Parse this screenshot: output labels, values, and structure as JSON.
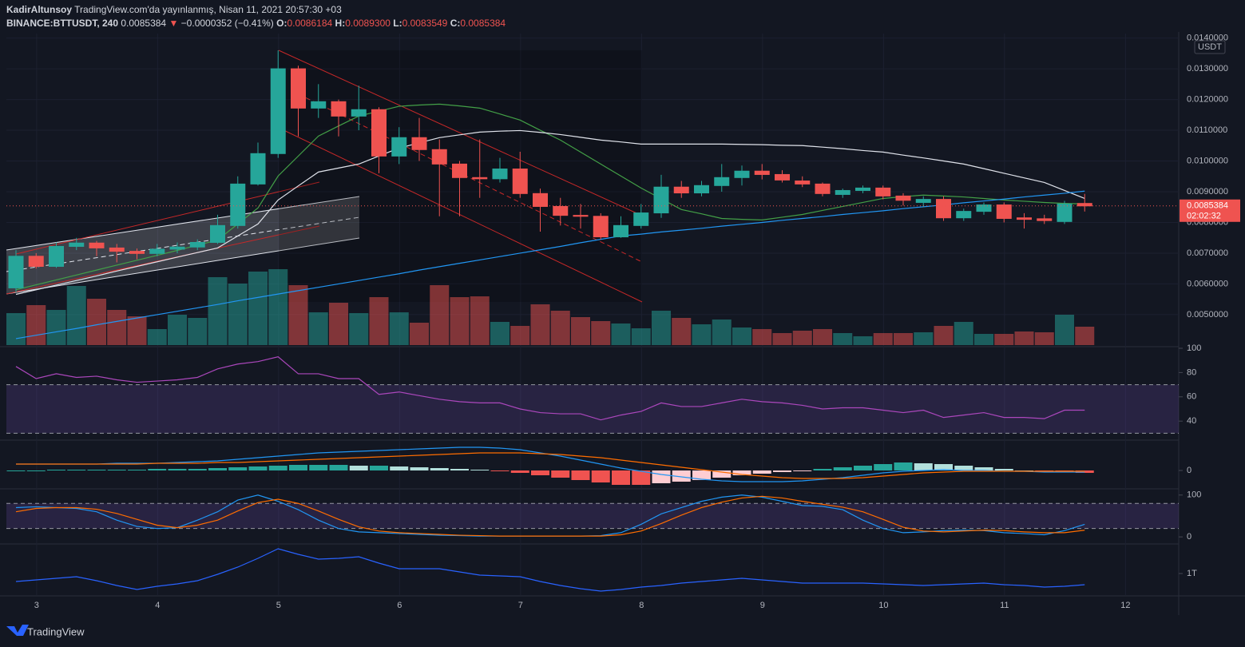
{
  "header": {
    "author": "KadirAltunsoy",
    "published": "TradingView.com'da yayınlanmış, Nisan 11, 2021 20:57:30 +03",
    "symbol": "BINANCE:BTTUSDT, 240",
    "last": "0.0085384",
    "arrow": "▼",
    "change": "−0.0000352 (−0.41%)",
    "o_label": "O:",
    "o": "0.0086184",
    "h_label": "H:",
    "h": "0.0089300",
    "l_label": "L:",
    "l": "0.0083549",
    "c_label": "C:",
    "c": "0.0085384"
  },
  "chart_data": [
    {
      "type": "candlestick",
      "up_color": "#26a69a",
      "down_color": "#ef5350",
      "currency": "USDT",
      "price_tag": {
        "label": "0.0085384",
        "countdown": "02:02:32"
      },
      "candles": {
        "open": [
          0.00587,
          0.0069,
          0.00657,
          0.00722,
          0.00733,
          0.00717,
          0.00706,
          0.00699,
          0.00713,
          0.0072,
          0.00735,
          0.0079,
          0.00925,
          0.01024,
          0.013,
          0.01172,
          0.01193,
          0.01146,
          0.01167,
          0.01016,
          0.01076,
          0.01037,
          0.0099,
          0.00946,
          0.00942,
          0.00974,
          0.00894,
          0.00852,
          0.00823,
          0.0082,
          0.00753,
          0.0079,
          0.00831,
          0.00915,
          0.00896,
          0.0092,
          0.00946,
          0.00967,
          0.00956,
          0.00935,
          0.00925,
          0.00891,
          0.00904,
          0.00912,
          0.00886,
          0.00865,
          0.00875,
          0.00815,
          0.00836,
          0.00857,
          0.00815,
          0.00812,
          0.00803,
          0.0086184
        ],
        "high": [
          0.0071,
          0.007,
          0.00735,
          0.0075,
          0.0074,
          0.0073,
          0.00715,
          0.0073,
          0.00735,
          0.00745,
          0.00825,
          0.0095,
          0.0106,
          0.0136,
          0.0131,
          0.0125,
          0.012,
          0.01245,
          0.01175,
          0.0111,
          0.0114,
          0.0107,
          0.01,
          0.0107,
          0.0101,
          0.0103,
          0.0091,
          0.0088,
          0.0086,
          0.0083,
          0.0082,
          0.0086,
          0.00955,
          0.00935,
          0.00935,
          0.0099,
          0.00985,
          0.0099,
          0.0097,
          0.0095,
          0.0093,
          0.0091,
          0.0092,
          0.0092,
          0.00895,
          0.00885,
          0.00885,
          0.00845,
          0.00865,
          0.00865,
          0.0083,
          0.00825,
          0.0087,
          0.00893
        ],
        "low": [
          0.00572,
          0.0065,
          0.00652,
          0.0071,
          0.0069,
          0.0067,
          0.0068,
          0.0069,
          0.007,
          0.0071,
          0.0073,
          0.0078,
          0.0092,
          0.0101,
          0.0108,
          0.0114,
          0.0108,
          0.011,
          0.0096,
          0.0099,
          0.01,
          0.0082,
          0.0082,
          0.0088,
          0.0093,
          0.0088,
          0.0077,
          0.0079,
          0.0078,
          0.00745,
          0.0075,
          0.0078,
          0.00815,
          0.0088,
          0.00885,
          0.009,
          0.0092,
          0.0094,
          0.0093,
          0.00915,
          0.00885,
          0.0088,
          0.00895,
          0.00875,
          0.00855,
          0.0085,
          0.00805,
          0.00805,
          0.00825,
          0.008,
          0.0078,
          0.00795,
          0.00795,
          0.0083549
        ],
        "close": [
          0.0069,
          0.00657,
          0.00722,
          0.00733,
          0.00717,
          0.00706,
          0.00699,
          0.00713,
          0.0072,
          0.00735,
          0.0079,
          0.00925,
          0.01024,
          0.013,
          0.01172,
          0.01193,
          0.01146,
          0.01167,
          0.01016,
          0.01076,
          0.01037,
          0.0099,
          0.00946,
          0.00942,
          0.00974,
          0.00894,
          0.00852,
          0.00823,
          0.0082,
          0.00753,
          0.0079,
          0.00831,
          0.00915,
          0.00896,
          0.0092,
          0.00946,
          0.00967,
          0.00956,
          0.00938,
          0.00925,
          0.00894,
          0.00904,
          0.00912,
          0.00886,
          0.00872,
          0.00875,
          0.00815,
          0.00836,
          0.00857,
          0.00813,
          0.0081,
          0.00806,
          0.0086,
          0.0085384
        ]
      },
      "volume": [
        40,
        50,
        44,
        74,
        58,
        44,
        36,
        20,
        38,
        34,
        85,
        77,
        92,
        95,
        75,
        41,
        53,
        40,
        60,
        41,
        28,
        75,
        60,
        61,
        29,
        24,
        51,
        43,
        35,
        30,
        27,
        21,
        43,
        34,
        26,
        32,
        22,
        20,
        15,
        18,
        20,
        15,
        11,
        15,
        15,
        16,
        24,
        29,
        14,
        14,
        17,
        16,
        38,
        23
      ],
      "series": [
        {
          "color": "#43a047",
          "values": [
            0.00581,
            0.00597,
            0.00613,
            0.00629,
            0.00645,
            0.00661,
            0.00677,
            0.00693,
            0.00709,
            0.00726,
            0.00743,
            0.00795,
            0.00847,
            0.00951,
            0.01016,
            0.01081,
            0.01114,
            0.01146,
            0.01162,
            0.01178,
            0.01182,
            0.01185,
            0.01179,
            0.01172,
            0.01153,
            0.01133,
            0.011,
            0.01068,
            0.01029,
            0.0099,
            0.00951,
            0.00912,
            0.00877,
            0.00842,
            0.00828,
            0.00813,
            0.0081,
            0.00808,
            0.00817,
            0.00826,
            0.00839,
            0.00852,
            0.00865,
            0.00878,
            0.00884,
            0.00889,
            0.00886,
            0.00883,
            0.00878,
            0.00873,
            0.00869,
            0.00865,
            0.00862,
            0.0086
          ]
        },
        {
          "color": "#e0e3eb",
          "values": [
            0.00566,
            0.00581,
            0.00596,
            0.00611,
            0.00626,
            0.00642,
            0.00657,
            0.00672,
            0.00687,
            0.00702,
            0.00717,
            0.00756,
            0.00795,
            0.00873,
            0.00919,
            0.00964,
            0.00977,
            0.0099,
            0.01016,
            0.01042,
            0.01059,
            0.01076,
            0.01085,
            0.01094,
            0.01097,
            0.01099,
            0.01093,
            0.01086,
            0.01077,
            0.01068,
            0.01062,
            0.01055,
            0.01055,
            0.01055,
            0.01055,
            0.01055,
            0.01054,
            0.01053,
            0.01051,
            0.0105,
            0.01045,
            0.0104,
            0.01034,
            0.01029,
            0.01019,
            0.0101,
            0.01,
            0.0099,
            0.00975,
            0.0096,
            0.00945,
            0.0093,
            0.00904,
            0.00878
          ]
        },
        {
          "color": "#2196f3",
          "values": [
            0.00422,
            0.00433,
            0.00444,
            0.00455,
            0.00467,
            0.00478,
            0.00489,
            0.005,
            0.00511,
            0.00522,
            0.00533,
            0.00545,
            0.00556,
            0.00567,
            0.00578,
            0.00589,
            0.006,
            0.00611,
            0.00622,
            0.00633,
            0.00645,
            0.00656,
            0.00667,
            0.00678,
            0.00689,
            0.007,
            0.00711,
            0.00722,
            0.00734,
            0.00745,
            0.00756,
            0.00762,
            0.00769,
            0.00775,
            0.00781,
            0.00788,
            0.00794,
            0.008,
            0.00807,
            0.00813,
            0.00819,
            0.00826,
            0.00832,
            0.00838,
            0.00845,
            0.00851,
            0.00857,
            0.00864,
            0.0087,
            0.00876,
            0.00883,
            0.00889,
            0.00895,
            0.00902
          ]
        }
      ],
      "ylim": [
        0.00401,
        0.014146
      ],
      "yticks": [
        {
          "value": 0.014,
          "label": "0.0140000"
        },
        {
          "value": 0.013,
          "label": "0.0130000"
        },
        {
          "value": 0.012,
          "label": "0.0120000"
        },
        {
          "value": 0.011,
          "label": "0.0110000"
        },
        {
          "value": 0.01,
          "label": "0.0100000"
        },
        {
          "value": 0.009,
          "label": "0.0090000"
        },
        {
          "value": 0.008,
          "label": "0.0080000"
        },
        {
          "value": 0.007,
          "label": "0.0070000"
        },
        {
          "value": 0.006,
          "label": "0.0060000"
        },
        {
          "value": 0.005,
          "label": "0.0050000"
        }
      ],
      "xlim": [
        2.75,
        12.44
      ],
      "xticks": [
        3,
        4,
        5,
        6,
        7,
        8,
        9,
        10,
        11,
        12
      ]
    },
    {
      "type": "line",
      "ylim": [
        25,
        100
      ],
      "yticks": [
        40,
        60,
        80,
        100
      ],
      "bands": [
        30,
        70
      ],
      "band_color": "#7e57c2",
      "series": [
        {
          "color": "#ab47bc",
          "values": [
            85,
            75,
            79,
            76,
            77,
            74,
            72,
            73,
            74,
            76,
            83,
            87,
            89,
            93,
            79,
            79,
            75,
            75,
            62,
            64,
            61,
            58,
            56,
            55,
            55,
            50,
            47,
            46,
            46,
            41,
            45,
            48,
            55,
            52,
            52,
            55,
            58,
            56,
            55,
            53,
            50,
            51,
            51,
            49,
            47,
            49,
            43,
            45,
            47,
            43,
            43,
            42,
            49,
            49
          ]
        }
      ]
    },
    {
      "type": "macd",
      "ylim": [
        -22,
        36
      ],
      "yticks": [
        0
      ],
      "histogram": [
        0,
        0,
        1,
        1,
        1,
        1,
        1,
        2,
        2,
        2,
        3,
        4,
        5,
        6,
        7,
        7,
        7,
        6,
        6,
        5,
        4,
        3,
        2,
        1,
        -1,
        -3,
        -6,
        -9,
        -12,
        -15,
        -18,
        -18,
        -16,
        -14,
        -12,
        -9,
        -6,
        -4,
        -2,
        -1,
        2,
        4,
        6,
        8,
        10,
        9,
        8,
        6,
        4,
        2,
        0,
        -1,
        -2,
        -3
      ],
      "series": [
        {
          "color": "#2196f3",
          "values": [
            8,
            8,
            8,
            8,
            8,
            9,
            9,
            9,
            10,
            11,
            12,
            14,
            16,
            18,
            20,
            22,
            23,
            24,
            25,
            26,
            27,
            28,
            29,
            29,
            28,
            26,
            22,
            18,
            13,
            8,
            3,
            -1,
            -5,
            -8,
            -11,
            -13,
            -14,
            -14,
            -14,
            -13,
            -11,
            -9,
            -6,
            -3,
            -1,
            0,
            1,
            0,
            0,
            -1,
            -1,
            -2,
            -2,
            -2
          ]
        },
        {
          "color": "#ff6d00",
          "values": [
            8,
            8,
            8,
            8,
            8,
            8,
            8,
            9,
            9,
            9,
            10,
            10,
            11,
            12,
            13,
            14,
            15,
            16,
            17,
            18,
            19,
            20,
            21,
            22,
            22,
            22,
            21,
            20,
            18,
            16,
            13,
            10,
            7,
            4,
            1,
            -2,
            -5,
            -7,
            -9,
            -10,
            -10,
            -10,
            -9,
            -7,
            -5,
            -3,
            -2,
            -1,
            -1,
            -1,
            -1,
            -1,
            -1,
            -1
          ]
        }
      ]
    },
    {
      "type": "line",
      "ylim": [
        -15,
        111
      ],
      "yticks": [
        0,
        100
      ],
      "bands": [
        20,
        80
      ],
      "band_color": "#7e57c2",
      "series": [
        {
          "color": "#2196f3",
          "values": [
            70,
            72,
            70,
            68,
            60,
            40,
            25,
            20,
            22,
            40,
            60,
            88,
            100,
            85,
            65,
            40,
            20,
            12,
            10,
            8,
            6,
            4,
            3,
            2,
            2,
            2,
            2,
            2,
            2,
            3,
            10,
            30,
            55,
            70,
            85,
            95,
            100,
            95,
            85,
            75,
            73,
            65,
            40,
            20,
            10,
            12,
            15,
            16,
            15,
            10,
            8,
            5,
            15,
            30
          ]
        },
        {
          "color": "#ff6d00",
          "values": [
            60,
            68,
            70,
            70,
            66,
            56,
            42,
            28,
            22,
            28,
            40,
            62,
            82,
            90,
            80,
            62,
            42,
            24,
            14,
            10,
            8,
            6,
            4,
            3,
            2,
            2,
            2,
            2,
            2,
            2,
            5,
            14,
            32,
            52,
            70,
            83,
            93,
            97,
            93,
            85,
            78,
            71,
            60,
            42,
            23,
            14,
            12,
            14,
            16,
            15,
            12,
            10,
            10,
            16
          ]
        }
      ]
    },
    {
      "type": "line",
      "ylim": [
        0,
        63
      ],
      "yticks": [
        {
          "value": 27,
          "label": "1T"
        }
      ],
      "series": [
        {
          "color": "#2962ff",
          "values": [
            17,
            19,
            21,
            23,
            18,
            12,
            7,
            11,
            14,
            18,
            26,
            35,
            46,
            58,
            51,
            45,
            46,
            48,
            40,
            33,
            33,
            33,
            29,
            25,
            24,
            23,
            17,
            12,
            8,
            5,
            7,
            10,
            12,
            15,
            17,
            19,
            21,
            19,
            17,
            15,
            15,
            15,
            15,
            14,
            13,
            12,
            13,
            14,
            15,
            13,
            12,
            10,
            11,
            13
          ]
        }
      ]
    }
  ],
  "footer": {
    "brand": "TradingView"
  }
}
